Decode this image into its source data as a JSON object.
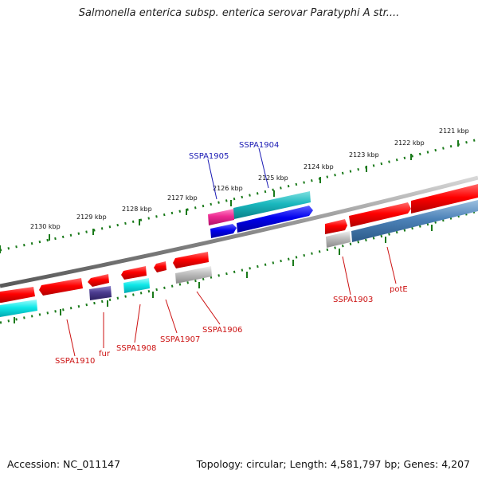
{
  "title": "Salmonella enterica subsp. enterica serovar Paratyphi A str....",
  "footer": {
    "accession": "Accession: NC_011147",
    "summary": "Topology: circular; Length: 4,581,797 bp; Genes: 4,207"
  },
  "colors": {
    "backbone": "#808080",
    "scale_dots": "#1a7a1a",
    "label_forward": "#1a1ab4",
    "label_reverse": "#cc1111"
  },
  "axis": {
    "unit": "kbp",
    "tick_labels": [
      "2121 kbp",
      "2122 kbp",
      "2123 kbp",
      "2124 kbp",
      "2125 kbp",
      "2126 kbp",
      "2127 kbp",
      "2128 kbp",
      "2129 kbp",
      "2130 kbp"
    ]
  },
  "genes": [
    {
      "name": "SSPA1905",
      "labeled": true
    },
    {
      "name": "SSPA1904",
      "labeled": true
    },
    {
      "name": "SSPA1903",
      "labeled": true
    },
    {
      "name": "potE",
      "labeled": true
    },
    {
      "name": "SSPA1906",
      "labeled": true
    },
    {
      "name": "SSPA1907",
      "labeled": true
    },
    {
      "name": "SSPA1908",
      "labeled": true
    },
    {
      "name": "fur",
      "labeled": true
    },
    {
      "name": "SSPA1910",
      "labeled": true
    }
  ]
}
